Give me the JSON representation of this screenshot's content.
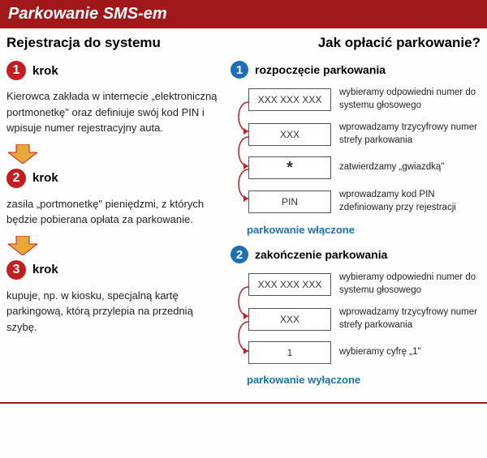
{
  "header_title": "Parkowanie SMS-em",
  "colors": {
    "header_bg": "#a01818",
    "step_circle": "#c41e1e",
    "blue_circle": "#1e6fb8",
    "blue_text": "#1e6fb8",
    "arrow_fill": "#e8a838",
    "arrow_stroke": "#c41e1e",
    "curve_stroke": "#c41e1e"
  },
  "left": {
    "title": "Rejestracja do systemu",
    "steps": [
      {
        "num": "1",
        "label": "krok",
        "text": "Kierowca zakłada w internecie „elektroniczną portmonetkę\" oraz definiuje swój kod PIN i wpisuje numer rejestracyjny auta."
      },
      {
        "num": "2",
        "label": "krok",
        "text": "zasila „portmonetkę\" pieniędzmi, z których będzie pobierana opłata za parkowanie."
      },
      {
        "num": "3",
        "label": "krok",
        "text": "kupuje, np. w kiosku, specjalną kartę parkingową, którą przylepia na przednią szybę."
      }
    ]
  },
  "right": {
    "title": "Jak opłacić parkowanie?",
    "sections": [
      {
        "num": "1",
        "label": "rozpoczęcie parkowania",
        "rows": [
          {
            "box": "XXX XXX XXX",
            "desc": "wybieramy odpowiedni numer do systemu głosowego"
          },
          {
            "box": "XXX",
            "desc": "wprowadzamy trzycyfrowy numer strefy parkowania"
          },
          {
            "box": "*",
            "desc": "zatwierdzamy „gwiazdką\""
          },
          {
            "box": "PIN",
            "desc": "wprowadzamy kod PIN zdefiniowany przy rejestracji"
          }
        ],
        "status": "parkowanie włączone"
      },
      {
        "num": "2",
        "label": "zakończenie parkowania",
        "rows": [
          {
            "box": "XXX XXX XXX",
            "desc": "wybieramy odpowiedni numer do systemu głosowego"
          },
          {
            "box": "XXX",
            "desc": "wprowadzamy trzycyfrowy numer strefy parkowania"
          },
          {
            "box": "1",
            "desc": "wybieramy cyfrę „1\""
          }
        ],
        "status": "parkowanie wyłączone"
      }
    ]
  }
}
